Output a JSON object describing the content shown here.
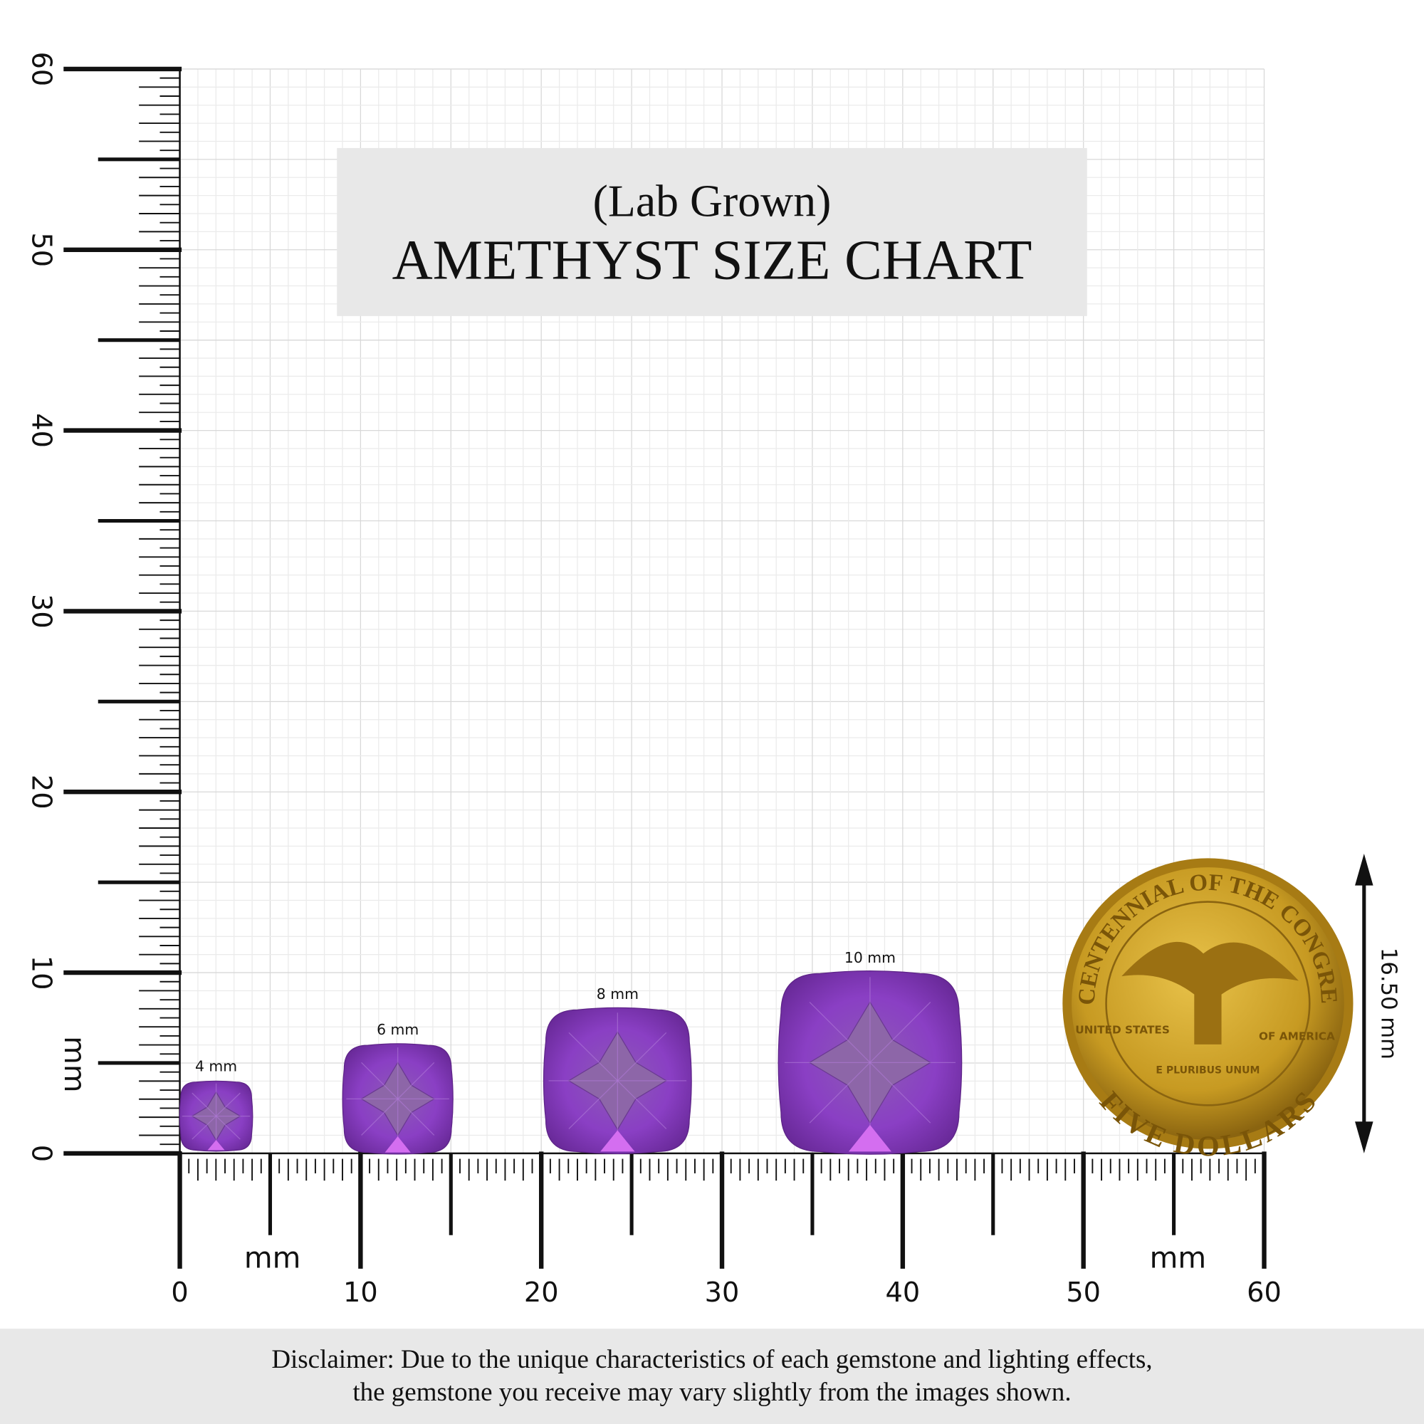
{
  "header": {
    "subtitle": "(Lab Grown)",
    "title": "AMETHYST SIZE CHART"
  },
  "ruler": {
    "x_ticks": [
      0,
      10,
      20,
      30,
      40,
      50,
      60
    ],
    "y_ticks": [
      0,
      10,
      20,
      30,
      40,
      50,
      60
    ],
    "x_unit_left": "mm",
    "x_unit_right": "mm",
    "y_unit": "mm"
  },
  "gems": [
    {
      "label": "4 mm"
    },
    {
      "label": "6 mm"
    },
    {
      "label": "8 mm"
    },
    {
      "label": "10 mm"
    }
  ],
  "coin": {
    "size_label": "16.50 mm",
    "top_text": "BICENTENNIAL OF THE CONGRESS",
    "left_text": "UNITED STATES",
    "right_text": "OF AMERICA",
    "motto": "E PLURIBUS UNUM",
    "bottom_text": "FIVE DOLLARS"
  },
  "disclaimer": {
    "line1": "Disclaimer: Due to the unique characteristics of each gemstone and lighting effects,",
    "line2": "the gemstone you receive may vary slightly from the images shown."
  }
}
